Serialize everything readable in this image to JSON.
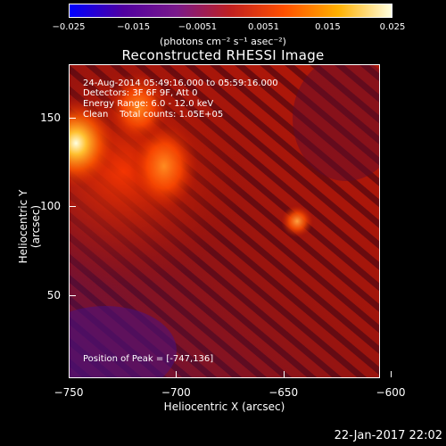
{
  "chart_data": {
    "type": "heatmap",
    "title": "Reconstructed RHESSI Image",
    "xlabel": "Heliocentric X (arcsec)",
    "ylabel": "Heliocentric Y (arcsec)",
    "xlim": [
      -750,
      -605
    ],
    "ylim": [
      3,
      180
    ],
    "x_ticks": [
      "−750",
      "−700",
      "−650",
      "−600"
    ],
    "x_tick_values": [
      -750,
      -700,
      -650,
      -600
    ],
    "y_ticks": [
      "50",
      "100",
      "150"
    ],
    "y_tick_values": [
      50,
      100,
      150
    ],
    "colorbar": {
      "range": [
        -0.025,
        0.025
      ],
      "tick_labels": [
        "−0.025",
        "−0.015",
        "−0.0051",
        "0.0051",
        "0.015",
        "0.025"
      ],
      "tick_values": [
        -0.025,
        -0.015,
        -0.0051,
        0.0051,
        0.015,
        0.025
      ],
      "units": "(photons cm⁻² s⁻¹ asec⁻²)",
      "colors": [
        "#0000ff",
        "#5000a0",
        "#7a1a8a",
        "#c02020",
        "#ff5000",
        "#ffb000",
        "#ffffe0"
      ]
    },
    "sources": [
      {
        "x": -747,
        "y": 136,
        "value": 0.025
      },
      {
        "x": -706,
        "y": 123,
        "value": 0.015
      },
      {
        "x": -718,
        "y": 156,
        "value": 0.012
      },
      {
        "x": -644,
        "y": 92,
        "value": 0.011
      }
    ],
    "annotations": {
      "time": "24-Aug-2014 05:49:16.000 to 05:59:16.000",
      "detectors": "Detectors: 3F 6F 9F, Att 0",
      "energy": "Energy Range: 6.0 - 12.0 keV",
      "clean": "Clean    Total counts: 1.05E+05",
      "peak": "Position of Peak = [-747,136]"
    },
    "footer": "22-Jan-2017 22:02"
  }
}
